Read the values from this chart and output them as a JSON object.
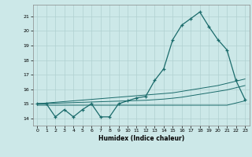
{
  "xlabel": "Humidex (Indice chaleur)",
  "bg_color": "#cce8e8",
  "grid_color": "#b0d0d0",
  "line_color": "#1a6b6b",
  "xlim": [
    -0.5,
    23.5
  ],
  "ylim": [
    13.5,
    21.8
  ],
  "yticks": [
    14,
    15,
    16,
    17,
    18,
    19,
    20,
    21
  ],
  "xticks": [
    0,
    1,
    2,
    3,
    4,
    5,
    6,
    7,
    8,
    9,
    10,
    11,
    12,
    13,
    14,
    15,
    16,
    17,
    18,
    19,
    20,
    21,
    22,
    23
  ],
  "series1_x": [
    0,
    1,
    2,
    3,
    4,
    5,
    6,
    7,
    8,
    9,
    10,
    11,
    12,
    13,
    14,
    15,
    16,
    17,
    18,
    19,
    20,
    21,
    22,
    23
  ],
  "series1_y": [
    15.0,
    15.0,
    14.1,
    14.6,
    14.1,
    14.6,
    15.0,
    14.1,
    14.1,
    15.0,
    15.2,
    15.4,
    15.5,
    16.6,
    17.4,
    19.4,
    20.4,
    20.85,
    21.3,
    20.3,
    19.4,
    18.7,
    16.6,
    15.3
  ],
  "series2_x": [
    0,
    1,
    2,
    3,
    4,
    5,
    6,
    7,
    8,
    9,
    10,
    11,
    12,
    13,
    14,
    15,
    16,
    17,
    18,
    19,
    20,
    21,
    22,
    23
  ],
  "series2_y": [
    15.0,
    15.05,
    15.1,
    15.15,
    15.2,
    15.25,
    15.3,
    15.35,
    15.4,
    15.45,
    15.5,
    15.55,
    15.6,
    15.65,
    15.7,
    15.75,
    15.85,
    15.95,
    16.05,
    16.15,
    16.25,
    16.4,
    16.55,
    16.7
  ],
  "series3_x": [
    0,
    1,
    2,
    3,
    4,
    5,
    6,
    7,
    8,
    9,
    10,
    11,
    12,
    13,
    14,
    15,
    16,
    17,
    18,
    19,
    20,
    21,
    22,
    23
  ],
  "series3_y": [
    15.0,
    15.02,
    15.04,
    15.06,
    15.08,
    15.1,
    15.12,
    15.14,
    15.16,
    15.18,
    15.2,
    15.22,
    15.24,
    15.28,
    15.32,
    15.38,
    15.45,
    15.55,
    15.65,
    15.75,
    15.85,
    15.95,
    16.1,
    16.25
  ],
  "series4_x": [
    0,
    1,
    2,
    3,
    4,
    5,
    6,
    7,
    8,
    9,
    10,
    11,
    12,
    13,
    14,
    15,
    16,
    17,
    18,
    19,
    20,
    21,
    22,
    23
  ],
  "series4_y": [
    14.9,
    14.9,
    14.9,
    14.9,
    14.9,
    14.9,
    14.9,
    14.9,
    14.9,
    14.9,
    14.9,
    14.9,
    14.9,
    14.9,
    14.9,
    14.9,
    14.9,
    14.9,
    14.9,
    14.9,
    14.9,
    14.9,
    15.05,
    15.2
  ]
}
